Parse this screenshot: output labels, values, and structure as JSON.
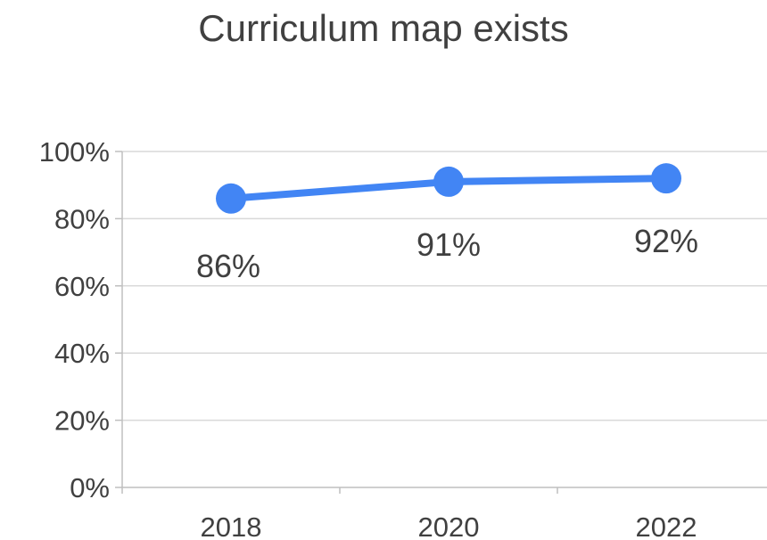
{
  "chart_data": {
    "type": "line",
    "title": "Curriculum map exists",
    "xlabel": "",
    "ylabel": "",
    "categories": [
      "2018",
      "2020",
      "2022"
    ],
    "series": [
      {
        "values": [
          86,
          91,
          92
        ],
        "data_labels": [
          "86%",
          "91%",
          "92%"
        ],
        "color": "#4285F4"
      }
    ],
    "ylim": [
      0,
      100
    ],
    "y_ticks": [
      0,
      20,
      40,
      60,
      80,
      100
    ],
    "y_tick_labels": [
      "0%",
      "20%",
      "40%",
      "60%",
      "80%",
      "100%"
    ],
    "grid": true,
    "legend": "none"
  },
  "colors": {
    "line": "#4285F4",
    "grid": "#d9d9d9",
    "axis": "#bfbfbf",
    "text": "#404040"
  }
}
